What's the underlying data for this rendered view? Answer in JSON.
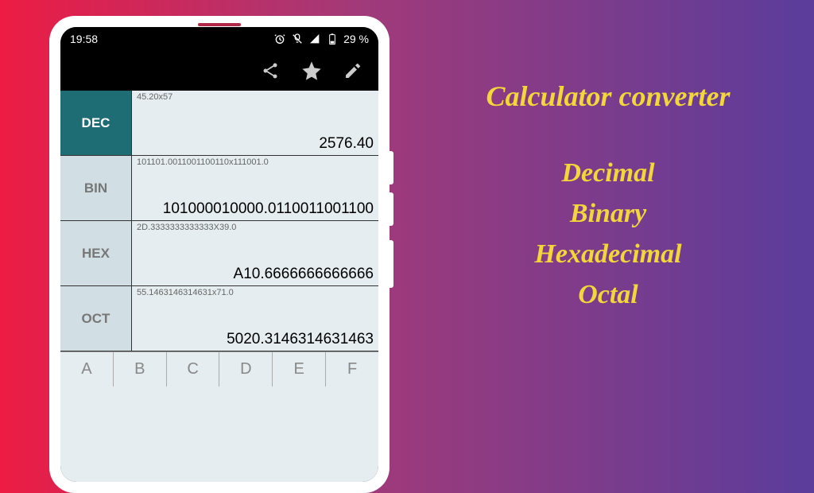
{
  "status": {
    "time": "19:58",
    "battery": "29 %"
  },
  "rows": [
    {
      "key": "DEC",
      "expr": "45.20x57",
      "result": "2576.40",
      "active": true
    },
    {
      "key": "BIN",
      "expr": "101101.0011001100110x111001.0",
      "result": "101000010000.0110011001100",
      "active": false
    },
    {
      "key": "HEX",
      "expr": "2D.3333333333333X39.0",
      "result": "A10.6666666666666",
      "active": false
    },
    {
      "key": "OCT",
      "expr": "55.1463146314631x71.0",
      "result": "5020.3146314631463",
      "active": false
    }
  ],
  "hexkeys": [
    "A",
    "B",
    "C",
    "D",
    "E",
    "F"
  ],
  "promo": {
    "title": "Calculator converter",
    "items": [
      "Decimal",
      "Binary",
      "Hexadecimal",
      "Octal"
    ]
  }
}
